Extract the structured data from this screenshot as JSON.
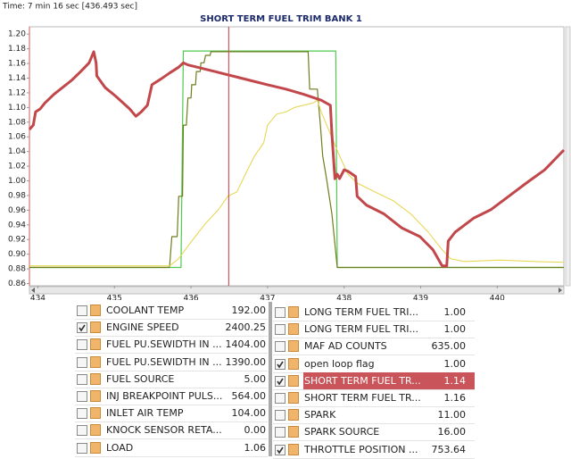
{
  "header": {
    "time": "Time: 7 min 16 sec [436.493 sec]"
  },
  "chart_data": {
    "type": "line",
    "title": "SHORT TERM FUEL TRIM BANK 1",
    "xlim": [
      433.89,
      440.87
    ],
    "ylim": [
      0.857,
      1.21
    ],
    "xticks": [
      434,
      435,
      436,
      437,
      438,
      439,
      440
    ],
    "yticks": [
      0.86,
      0.88,
      {
        "value": 0.9,
        "label": "0.90"
      },
      0.92,
      0.94,
      0.96,
      0.98,
      {
        "value": 1,
        "label": "1.00"
      },
      1.02,
      1.04,
      1.06,
      1.08,
      {
        "value": 1.1,
        "label": "1.10"
      },
      1.12,
      1.14,
      1.16,
      1.18,
      {
        "value": 1.2,
        "label": "1.20"
      }
    ],
    "cursor": 436.493,
    "series": [
      {
        "color": "#4fc94f",
        "width": 1.2,
        "x": [
          433.89,
          435.87,
          435.9,
          437.89,
          437.91,
          440.87
        ],
        "values": [
          0.882,
          0.882,
          1.177,
          1.177,
          0.882,
          0.882
        ]
      },
      {
        "color": "#6f7d1c",
        "width": 1.2,
        "x": [
          433.89,
          435.72,
          435.75,
          435.82,
          435.84,
          435.89,
          435.9,
          435.94,
          435.96,
          436.0,
          436.01,
          436.06,
          436.07,
          436.12,
          436.13,
          436.17,
          436.19,
          436.25,
          436.26,
          437.53,
          437.55,
          437.65,
          437.67,
          437.69,
          437.72,
          437.77,
          437.84,
          437.91,
          440.87
        ],
        "values": [
          0.882,
          0.882,
          0.924,
          0.924,
          0.979,
          0.979,
          1.076,
          1.076,
          1.113,
          1.113,
          1.131,
          1.131,
          1.149,
          1.149,
          1.161,
          1.161,
          1.171,
          1.171,
          1.176,
          1.176,
          1.125,
          1.125,
          1.1,
          1.076,
          1.034,
          1.003,
          0.955,
          0.882,
          0.882
        ]
      },
      {
        "color": "#e6d448",
        "width": 1,
        "x": [
          433.89,
          435.72,
          435.84,
          436.01,
          436.19,
          436.36,
          436.48,
          436.6,
          436.71,
          436.83,
          436.95,
          437.0,
          437.12,
          437.24,
          437.35,
          437.47,
          437.59,
          437.65,
          437.7,
          437.82,
          437.94,
          438.05,
          438.17,
          438.4,
          438.64,
          438.87,
          439.1,
          439.28,
          439.39,
          439.57,
          440.03,
          440.5,
          440.87
        ],
        "values": [
          0.884,
          0.884,
          0.894,
          0.918,
          0.942,
          0.961,
          0.979,
          0.985,
          1.009,
          1.034,
          1.052,
          1.076,
          1.091,
          1.094,
          1.1,
          1.103,
          1.106,
          1.11,
          1.094,
          1.064,
          1.034,
          1.009,
          0.997,
          0.985,
          0.973,
          0.955,
          0.93,
          0.906,
          0.894,
          0.89,
          0.892,
          0.89,
          0.889
        ]
      },
      {
        "color": "#c2474b",
        "width": 3,
        "x": [
          433.89,
          433.94,
          433.97,
          434.03,
          434.09,
          434.21,
          434.33,
          434.44,
          434.56,
          434.67,
          434.73,
          434.76,
          434.77,
          434.88,
          435.02,
          435.2,
          435.28,
          435.35,
          435.43,
          435.49,
          435.61,
          435.72,
          435.84,
          435.9,
          435.96,
          436.08,
          436.31,
          436.54,
          436.77,
          437.0,
          437.24,
          437.47,
          437.7,
          437.82,
          437.84,
          437.88,
          437.91,
          437.94,
          438.0,
          438.05,
          438.15,
          438.17,
          438.29,
          438.52,
          438.75,
          438.99,
          439.16,
          439.28,
          439.34,
          439.36,
          439.45,
          439.69,
          439.92,
          440.15,
          440.38,
          440.62,
          440.87
        ],
        "values": [
          1.07,
          1.076,
          1.094,
          1.098,
          1.106,
          1.118,
          1.128,
          1.137,
          1.149,
          1.161,
          1.176,
          1.161,
          1.143,
          1.127,
          1.115,
          1.098,
          1.088,
          1.094,
          1.103,
          1.131,
          1.139,
          1.147,
          1.155,
          1.161,
          1.158,
          1.155,
          1.149,
          1.143,
          1.137,
          1.131,
          1.125,
          1.118,
          1.11,
          1.103,
          1.064,
          1.003,
          1.009,
          1.003,
          1.015,
          1.013,
          1.006,
          0.979,
          0.967,
          0.955,
          0.936,
          0.924,
          0.906,
          0.884,
          0.884,
          0.918,
          0.93,
          0.949,
          0.961,
          0.979,
          0.997,
          1.015,
          1.042
        ]
      }
    ]
  },
  "table": {
    "left": [
      {
        "name": "COOLANT TEMP",
        "value": "192.00",
        "checked": false
      },
      {
        "name": "ENGINE SPEED",
        "value": "2400.25",
        "checked": true
      },
      {
        "name": "FUEL PU.SEWIDTH IN ...",
        "value": "1404.00",
        "checked": false
      },
      {
        "name": "FUEL PU.SEWIDTH IN ...",
        "value": "1390.00",
        "checked": false
      },
      {
        "name": "FUEL SOURCE",
        "value": "5.00",
        "checked": false
      },
      {
        "name": "INJ BREAKPOINT PULS...",
        "value": "564.00",
        "checked": false
      },
      {
        "name": "INLET AIR TEMP",
        "value": "104.00",
        "checked": false
      },
      {
        "name": "KNOCK SENSOR RETA...",
        "value": "0.00",
        "checked": false
      },
      {
        "name": "LOAD",
        "value": "1.06",
        "checked": false
      }
    ],
    "right": [
      {
        "name": "LONG TERM FUEL TRI...",
        "value": "1.00",
        "checked": false
      },
      {
        "name": "LONG TERM FUEL TRI...",
        "value": "1.00",
        "checked": false
      },
      {
        "name": "MAF AD COUNTS",
        "value": "635.00",
        "checked": false
      },
      {
        "name": "open loop flag",
        "value": "1.00",
        "checked": true
      },
      {
        "name": "SHORT TERM FUEL TR...",
        "value": "1.14",
        "checked": true,
        "selected": true
      },
      {
        "name": "SHORT TERM FUEL TR...",
        "value": "1.16",
        "checked": false
      },
      {
        "name": "SPARK",
        "value": "11.00",
        "checked": false
      },
      {
        "name": "SPARK SOURCE",
        "value": "16.00",
        "checked": false
      },
      {
        "name": "THROTTLE POSITION ...",
        "value": "753.64",
        "checked": true
      }
    ]
  }
}
